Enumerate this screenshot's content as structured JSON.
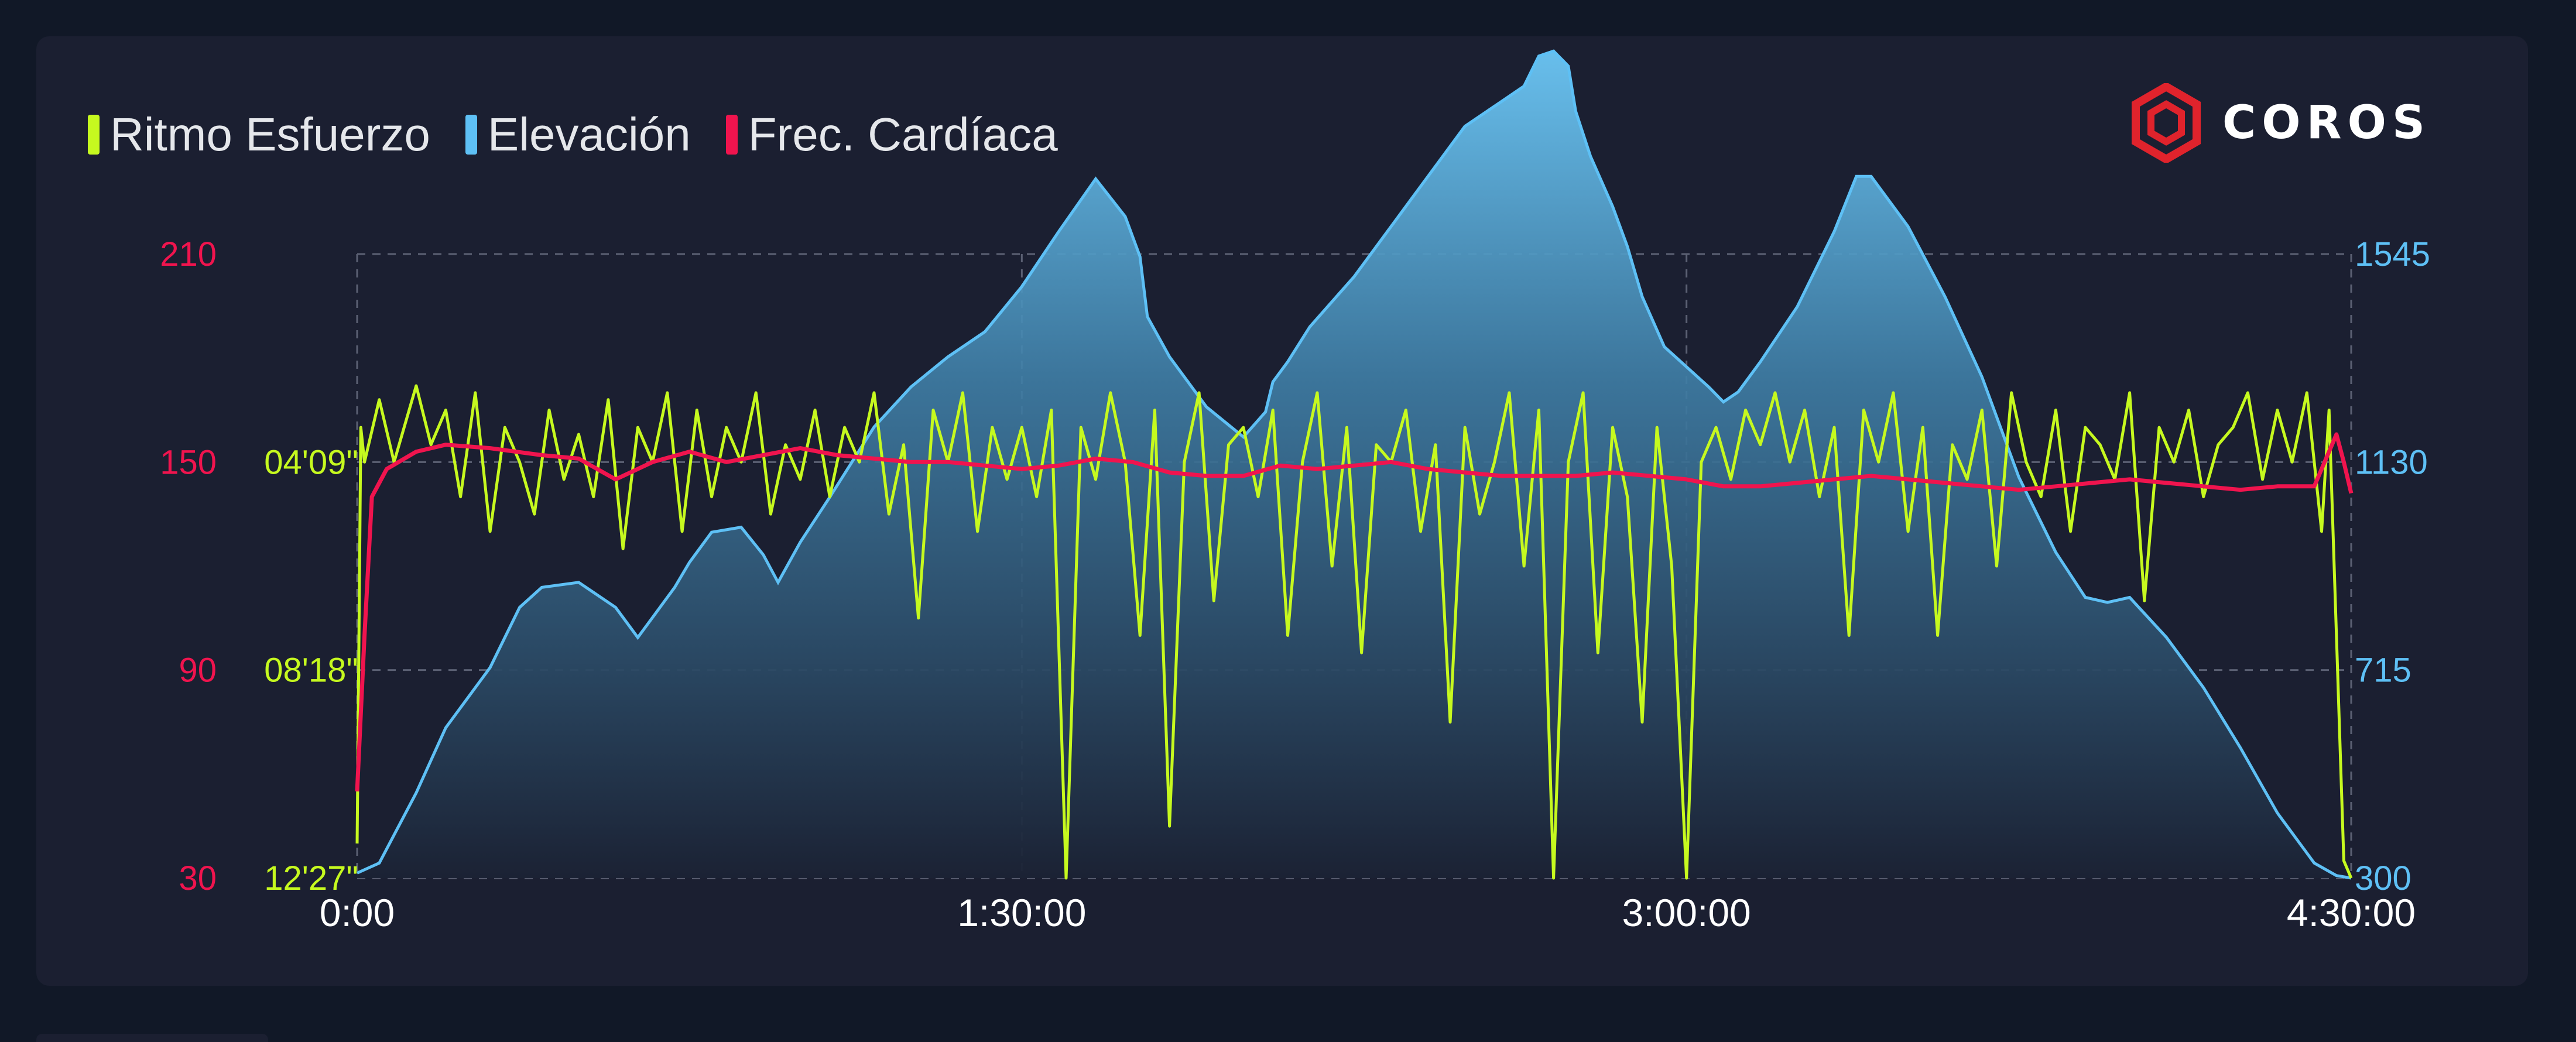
{
  "legend": [
    {
      "label": "Ritmo Esfuerzo",
      "color": "#c6f91f"
    },
    {
      "label": "Elevación",
      "color": "#5ec0f5"
    },
    {
      "label": "Frec. Cardíaca",
      "color": "#f0144e"
    }
  ],
  "logo": {
    "text": "COROS",
    "icon": "coros-hexagon-logo-icon",
    "color": "#e0232c"
  },
  "chart_data": {
    "type": "line",
    "x_label": "",
    "x_ticks": [
      "0:00",
      "1:30:00",
      "3:00:00",
      "4:30:00"
    ],
    "x_range_minutes": [
      0,
      270
    ],
    "axes": {
      "hr": {
        "ticks": [
          "210",
          "150",
          "90",
          "30"
        ],
        "range": [
          30,
          210
        ],
        "color": "#f0144e"
      },
      "pace": {
        "ticks": [
          "12'27\"",
          "08'18\"",
          "04'09\""
        ],
        "color": "#c6f91f"
      },
      "elevation": {
        "ticks": [
          "1545",
          "1130",
          "715",
          "300"
        ],
        "range": [
          300,
          1545
        ],
        "color": "#5ec0f5"
      }
    },
    "grid": true,
    "series": [
      {
        "name": "Elevación",
        "kind": "area",
        "color": "#5ec0f5",
        "x": [
          0,
          3,
          8,
          12,
          18,
          22,
          25,
          30,
          35,
          38,
          40,
          43,
          45,
          48,
          52,
          55,
          57,
          60,
          64,
          67,
          70,
          75,
          80,
          85,
          90,
          95,
          100,
          104,
          106,
          107,
          110,
          115,
          120,
          123,
          124,
          126,
          129,
          135,
          140,
          145,
          150,
          155,
          158,
          160,
          162,
          164,
          165,
          167,
          170,
          172,
          174,
          177,
          180,
          183,
          185,
          187,
          190,
          195,
          200,
          203,
          205,
          210,
          215,
          220,
          225,
          230,
          234,
          237,
          240,
          245,
          250,
          255,
          260,
          265,
          268,
          270
        ],
        "y": [
          310,
          330,
          470,
          600,
          720,
          840,
          880,
          890,
          840,
          780,
          820,
          880,
          930,
          990,
          1000,
          945,
          890,
          970,
          1060,
          1130,
          1200,
          1280,
          1340,
          1390,
          1480,
          1590,
          1695,
          1620,
          1540,
          1420,
          1340,
          1240,
          1180,
          1230,
          1290,
          1330,
          1400,
          1500,
          1600,
          1700,
          1800,
          1850,
          1880,
          1940,
          1950,
          1920,
          1830,
          1740,
          1640,
          1560,
          1460,
          1360,
          1320,
          1280,
          1250,
          1270,
          1330,
          1440,
          1590,
          1700,
          1700,
          1600,
          1460,
          1300,
          1100,
          950,
          860,
          850,
          860,
          780,
          680,
          560,
          430,
          330,
          305,
          300
        ]
      },
      {
        "name": "Frec. Cardíaca",
        "kind": "line",
        "color": "#f0144e",
        "x": [
          0,
          1,
          2,
          4,
          8,
          12,
          18,
          25,
          30,
          35,
          40,
          45,
          50,
          55,
          60,
          65,
          70,
          75,
          80,
          85,
          90,
          95,
          100,
          105,
          110,
          115,
          120,
          125,
          130,
          135,
          140,
          145,
          150,
          155,
          160,
          165,
          170,
          175,
          180,
          185,
          190,
          195,
          200,
          205,
          210,
          215,
          220,
          225,
          230,
          235,
          240,
          245,
          250,
          255,
          260,
          265,
          268,
          269,
          270
        ],
        "y": [
          55,
          100,
          140,
          148,
          153,
          155,
          154,
          152,
          151,
          145,
          150,
          153,
          150,
          152,
          154,
          152,
          151,
          150,
          150,
          149,
          148,
          149,
          151,
          150,
          147,
          146,
          146,
          149,
          148,
          149,
          150,
          148,
          147,
          146,
          146,
          146,
          147,
          146,
          145,
          143,
          143,
          144,
          145,
          146,
          145,
          144,
          143,
          142,
          143,
          144,
          145,
          144,
          143,
          142,
          143,
          143,
          158,
          150,
          141
        ]
      },
      {
        "name": "Ritmo Esfuerzo",
        "kind": "line",
        "color": "#c6f91f",
        "pace_scale_note": "values in y are on the left HR axis scale",
        "x": [
          0,
          0.5,
          1,
          3,
          5,
          8,
          10,
          12,
          14,
          16,
          18,
          20,
          22,
          24,
          26,
          28,
          30,
          32,
          34,
          36,
          38,
          40,
          42,
          44,
          46,
          48,
          50,
          52,
          54,
          56,
          58,
          60,
          62,
          64,
          66,
          68,
          70,
          72,
          74,
          76,
          78,
          80,
          82,
          84,
          86,
          88,
          90,
          92,
          94,
          96,
          98,
          100,
          102,
          104,
          106,
          108,
          110,
          112,
          114,
          116,
          118,
          120,
          122,
          124,
          126,
          128,
          130,
          132,
          134,
          136,
          138,
          140,
          142,
          144,
          146,
          148,
          150,
          152,
          154,
          156,
          158,
          160,
          162,
          164,
          166,
          168,
          170,
          172,
          174,
          176,
          178,
          180,
          182,
          184,
          186,
          188,
          190,
          192,
          194,
          196,
          198,
          200,
          202,
          204,
          206,
          208,
          210,
          212,
          214,
          216,
          218,
          220,
          222,
          224,
          226,
          228,
          230,
          232,
          234,
          236,
          238,
          240,
          242,
          244,
          246,
          248,
          250,
          252,
          254,
          256,
          258,
          260,
          262,
          264,
          266,
          267,
          268,
          269,
          270
        ],
        "y": [
          40,
          160,
          150,
          168,
          150,
          172,
          155,
          165,
          140,
          170,
          130,
          160,
          150,
          135,
          165,
          145,
          158,
          140,
          168,
          125,
          160,
          150,
          170,
          130,
          165,
          140,
          160,
          150,
          170,
          135,
          155,
          145,
          165,
          140,
          160,
          150,
          170,
          135,
          155,
          105,
          165,
          150,
          170,
          130,
          160,
          145,
          160,
          140,
          165,
          30,
          160,
          145,
          170,
          150,
          100,
          165,
          45,
          150,
          170,
          110,
          155,
          160,
          140,
          165,
          100,
          150,
          170,
          120,
          160,
          95,
          155,
          150,
          165,
          130,
          155,
          75,
          160,
          135,
          150,
          170,
          120,
          165,
          30,
          150,
          170,
          95,
          160,
          140,
          75,
          160,
          120,
          30,
          150,
          160,
          145,
          165,
          155,
          170,
          150,
          165,
          140,
          160,
          100,
          165,
          150,
          170,
          130,
          160,
          100,
          155,
          145,
          165,
          120,
          170,
          150,
          140,
          165,
          130,
          160,
          155,
          145,
          170,
          110,
          160,
          150,
          165,
          140,
          155,
          160,
          170,
          145,
          165,
          150,
          170,
          130,
          165,
          100,
          35,
          30
        ]
      }
    ]
  }
}
